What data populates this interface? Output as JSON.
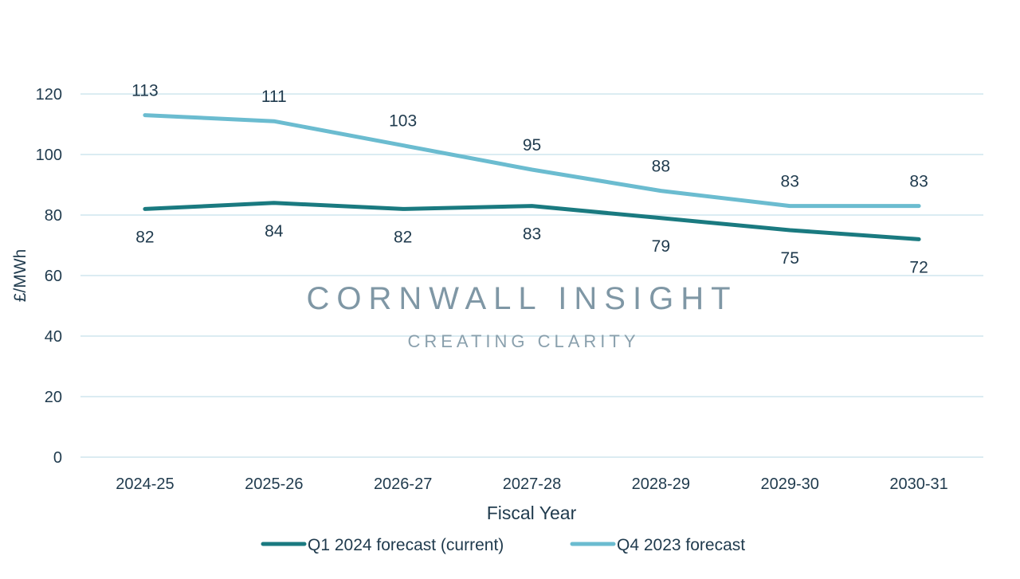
{
  "chart_data": {
    "type": "line",
    "title": "",
    "xlabel": "Fiscal Year",
    "ylabel": "£/MWh",
    "ylim": [
      0,
      120
    ],
    "yticks": [
      0,
      20,
      40,
      60,
      80,
      100,
      120
    ],
    "grid": true,
    "legend_position": "bottom",
    "categories": [
      "2024-25",
      "2025-26",
      "2026-27",
      "2027-28",
      "2028-29",
      "2029-30",
      "2030-31"
    ],
    "series": [
      {
        "name": "Q1 2024 forecast (current)",
        "values": [
          82,
          84,
          82,
          83,
          79,
          75,
          72
        ],
        "color": "#1a7a80",
        "label_position": "below"
      },
      {
        "name": "Q4 2023 forecast",
        "values": [
          113,
          111,
          103,
          95,
          88,
          83,
          83
        ],
        "color": "#6bbcd0",
        "label_position": "above"
      }
    ]
  },
  "watermark": {
    "title": "CORNWALL INSIGHT",
    "tagline": "CREATING CLARITY"
  }
}
